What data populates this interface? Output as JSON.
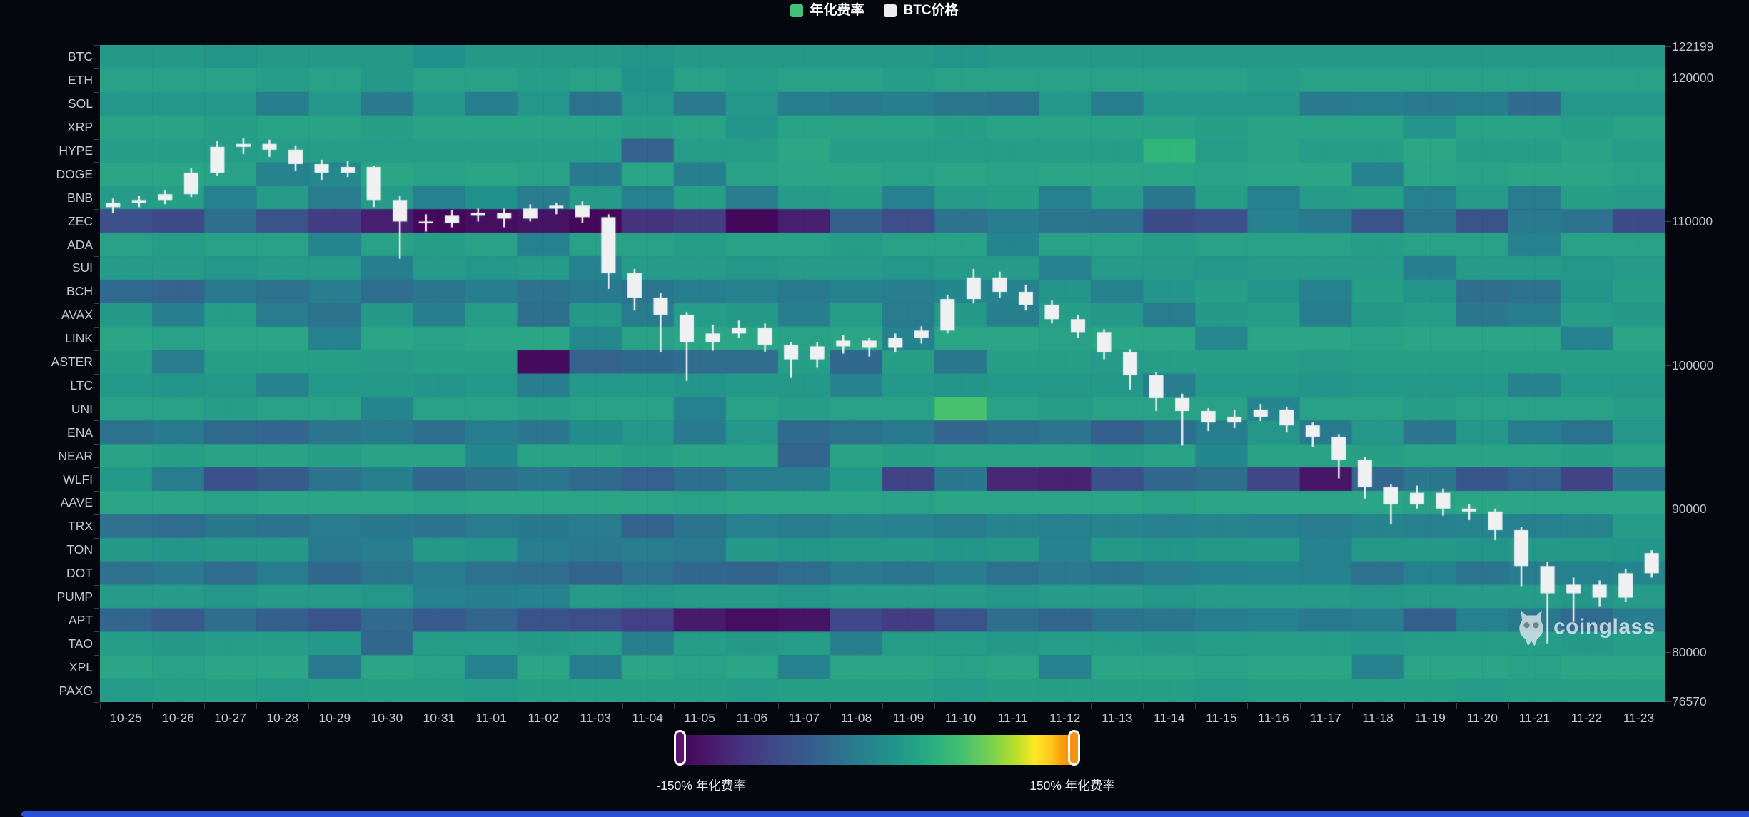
{
  "watermark": {
    "text": "coinglass"
  },
  "chart_data": {
    "type": "heatmap+candlestick",
    "title": "",
    "legend": [
      {
        "label": "年化费率",
        "color": "#41c27c"
      },
      {
        "label": "BTC价格",
        "color": "#ededef"
      }
    ],
    "colorbar": {
      "min": -150,
      "max": 150,
      "min_label": "-150% 年化费率",
      "max_label": "150% 年化费率",
      "min_handle_color": "#5c116b",
      "max_handle_color": "#f79216"
    },
    "x_dates": [
      "10-25",
      "10-26",
      "10-27",
      "10-28",
      "10-29",
      "10-30",
      "10-31",
      "11-01",
      "11-02",
      "11-03",
      "11-04",
      "11-05",
      "11-06",
      "11-07",
      "11-08",
      "11-09",
      "11-10",
      "11-11",
      "11-12",
      "11-13",
      "11-14",
      "11-15",
      "11-16",
      "11-17",
      "11-18",
      "11-19",
      "11-20",
      "11-21",
      "11-22",
      "11-23"
    ],
    "y_categories": [
      "BTC",
      "ETH",
      "SOL",
      "XRP",
      "HYPE",
      "DOGE",
      "BNB",
      "ZEC",
      "ADA",
      "SUI",
      "BCH",
      "AVAX",
      "LINK",
      "ASTER",
      "LTC",
      "UNI",
      "ENA",
      "NEAR",
      "WLFI",
      "AAVE",
      "TRX",
      "TON",
      "DOT",
      "PUMP",
      "APT",
      "TAO",
      "XPL",
      "PAXG"
    ],
    "heatmap_values_pct": [
      [
        12,
        12,
        10,
        12,
        12,
        12,
        8,
        12,
        12,
        12,
        10,
        12,
        12,
        12,
        12,
        12,
        10,
        12,
        12,
        12,
        12,
        12,
        12,
        12,
        12,
        12,
        12,
        12,
        12,
        12
      ],
      [
        12,
        12,
        12,
        10,
        12,
        8,
        12,
        12,
        10,
        12,
        5,
        12,
        10,
        12,
        12,
        10,
        12,
        12,
        12,
        12,
        12,
        12,
        10,
        12,
        12,
        12,
        12,
        12,
        12,
        12
      ],
      [
        10,
        10,
        10,
        -10,
        10,
        -15,
        10,
        -10,
        10,
        -25,
        10,
        -15,
        10,
        -10,
        -15,
        -10,
        -20,
        -25,
        10,
        -10,
        10,
        10,
        10,
        -15,
        -10,
        -15,
        -10,
        -35,
        10,
        10
      ],
      [
        12,
        12,
        10,
        12,
        12,
        10,
        12,
        12,
        12,
        12,
        10,
        12,
        5,
        12,
        12,
        12,
        10,
        12,
        12,
        12,
        12,
        10,
        12,
        12,
        12,
        5,
        12,
        12,
        10,
        12
      ],
      [
        12,
        12,
        12,
        12,
        12,
        12,
        12,
        12,
        12,
        12,
        -45,
        12,
        12,
        20,
        12,
        12,
        12,
        12,
        12,
        12,
        35,
        12,
        15,
        12,
        12,
        20,
        12,
        12,
        15,
        12
      ],
      [
        12,
        12,
        10,
        -10,
        -5,
        12,
        10,
        12,
        10,
        -20,
        12,
        -15,
        10,
        12,
        12,
        10,
        12,
        10,
        12,
        12,
        12,
        10,
        12,
        12,
        -10,
        12,
        10,
        12,
        12,
        10
      ],
      [
        10,
        12,
        -10,
        10,
        -15,
        10,
        -10,
        5,
        -15,
        10,
        -10,
        12,
        -15,
        10,
        12,
        -10,
        10,
        12,
        -10,
        10,
        -20,
        12,
        -10,
        10,
        12,
        -10,
        10,
        -15,
        12,
        10
      ],
      [
        -60,
        -70,
        -30,
        -55,
        -90,
        -120,
        -140,
        -135,
        -130,
        -140,
        -100,
        -90,
        -140,
        -120,
        -45,
        -65,
        -25,
        -10,
        -20,
        -25,
        -70,
        -60,
        -5,
        -15,
        -55,
        -20,
        -55,
        -15,
        -25,
        -70
      ],
      [
        12,
        10,
        12,
        12,
        -5,
        12,
        10,
        12,
        -10,
        12,
        12,
        10,
        12,
        12,
        10,
        12,
        12,
        -5,
        12,
        12,
        10,
        12,
        12,
        12,
        10,
        12,
        12,
        -10,
        12,
        12
      ],
      [
        12,
        12,
        10,
        12,
        12,
        -10,
        12,
        10,
        12,
        -5,
        12,
        12,
        10,
        12,
        12,
        10,
        12,
        12,
        -5,
        12,
        12,
        10,
        12,
        12,
        12,
        -10,
        12,
        12,
        10,
        12
      ],
      [
        -40,
        -45,
        -20,
        -30,
        -15,
        -35,
        -25,
        -15,
        -30,
        -20,
        -25,
        -15,
        -10,
        -20,
        -10,
        -15,
        -5,
        -10,
        5,
        -10,
        5,
        10,
        5,
        -10,
        10,
        5,
        -35,
        -30,
        5,
        10
      ],
      [
        10,
        -10,
        12,
        -15,
        -25,
        10,
        -10,
        12,
        -30,
        10,
        -15,
        12,
        10,
        -10,
        12,
        -15,
        10,
        -10,
        12,
        10,
        -15,
        10,
        12,
        -10,
        10,
        12,
        -20,
        -10,
        12,
        10
      ],
      [
        12,
        10,
        12,
        12,
        -10,
        12,
        10,
        12,
        12,
        -5,
        10,
        12,
        12,
        10,
        12,
        -10,
        12,
        12,
        10,
        12,
        12,
        -5,
        12,
        12,
        10,
        12,
        12,
        12,
        -10,
        12
      ],
      [
        12,
        -15,
        12,
        12,
        12,
        10,
        12,
        12,
        -140,
        -45,
        -40,
        -35,
        -35,
        12,
        -40,
        12,
        -20,
        12,
        12,
        10,
        12,
        12,
        12,
        10,
        12,
        12,
        12,
        12,
        12,
        12
      ],
      [
        12,
        10,
        12,
        -5,
        12,
        12,
        10,
        12,
        -10,
        12,
        12,
        10,
        12,
        12,
        -5,
        12,
        10,
        12,
        12,
        12,
        -10,
        12,
        12,
        10,
        12,
        12,
        12,
        -5,
        12,
        12
      ],
      [
        12,
        12,
        10,
        12,
        12,
        -5,
        12,
        12,
        10,
        12,
        12,
        -10,
        12,
        10,
        12,
        12,
        55,
        12,
        10,
        12,
        12,
        12,
        -5,
        12,
        12,
        10,
        12,
        12,
        12,
        10
      ],
      [
        -25,
        -15,
        -35,
        -40,
        -20,
        -15,
        -30,
        -10,
        -20,
        5,
        10,
        -15,
        10,
        -35,
        -25,
        -15,
        -40,
        -30,
        -20,
        -45,
        -30,
        -10,
        10,
        -15,
        10,
        -20,
        10,
        -10,
        -25,
        10
      ],
      [
        12,
        10,
        12,
        12,
        10,
        12,
        12,
        -5,
        12,
        12,
        10,
        12,
        12,
        -45,
        12,
        10,
        12,
        12,
        12,
        10,
        12,
        -5,
        12,
        12,
        10,
        12,
        12,
        12,
        10,
        12
      ],
      [
        10,
        -15,
        -60,
        -50,
        -25,
        -10,
        -40,
        -30,
        -20,
        -35,
        -45,
        -30,
        -15,
        -10,
        10,
        -85,
        -20,
        -115,
        -120,
        -60,
        -40,
        -30,
        -80,
        -130,
        -40,
        -20,
        -55,
        -45,
        -85,
        -20
      ],
      [
        12,
        12,
        10,
        12,
        12,
        12,
        10,
        12,
        12,
        12,
        12,
        10,
        12,
        12,
        12,
        10,
        12,
        12,
        12,
        12,
        10,
        12,
        12,
        12,
        12,
        10,
        12,
        12,
        12,
        12
      ],
      [
        -30,
        -35,
        -20,
        -25,
        -15,
        -20,
        -25,
        -15,
        -20,
        -15,
        -45,
        -25,
        -10,
        -15,
        -5,
        -10,
        -15,
        -5,
        -10,
        -5,
        -10,
        -5,
        -10,
        -15,
        -5,
        -10,
        -5,
        -10,
        -5,
        10
      ],
      [
        12,
        10,
        12,
        12,
        -15,
        -10,
        12,
        10,
        -10,
        -15,
        -10,
        -15,
        12,
        10,
        12,
        12,
        10,
        12,
        -5,
        12,
        10,
        12,
        12,
        -5,
        12,
        12,
        10,
        12,
        12,
        10
      ],
      [
        -30,
        -20,
        -35,
        -15,
        -40,
        -25,
        -15,
        -30,
        -35,
        -45,
        -30,
        -40,
        -45,
        -35,
        -20,
        -25,
        -15,
        -30,
        -20,
        -25,
        -15,
        -10,
        -5,
        -10,
        -30,
        -10,
        -25,
        -15,
        -10,
        -5
      ],
      [
        12,
        12,
        10,
        12,
        12,
        10,
        -5,
        -10,
        -5,
        12,
        10,
        12,
        12,
        10,
        12,
        12,
        12,
        10,
        12,
        12,
        10,
        12,
        12,
        12,
        10,
        12,
        12,
        12,
        10,
        12
      ],
      [
        -45,
        -55,
        -35,
        -50,
        -60,
        -40,
        -55,
        -45,
        -60,
        -70,
        -90,
        -130,
        -140,
        -135,
        -80,
        -95,
        -60,
        -35,
        -45,
        -30,
        -25,
        -15,
        -10,
        -20,
        -15,
        -50,
        -10,
        -20,
        -40,
        -15
      ],
      [
        12,
        10,
        12,
        12,
        10,
        -40,
        12,
        12,
        10,
        12,
        -10,
        12,
        10,
        12,
        -10,
        12,
        12,
        10,
        12,
        12,
        10,
        12,
        12,
        12,
        10,
        12,
        12,
        12,
        10,
        12
      ],
      [
        12,
        10,
        12,
        12,
        -20,
        12,
        10,
        -10,
        12,
        -15,
        12,
        10,
        12,
        -10,
        12,
        12,
        10,
        12,
        -10,
        12,
        12,
        10,
        12,
        12,
        -10,
        12,
        12,
        10,
        12,
        12
      ],
      [
        10,
        12,
        12,
        10,
        12,
        12,
        12,
        10,
        12,
        12,
        12,
        12,
        10,
        12,
        12,
        12,
        10,
        12,
        12,
        12,
        12,
        10,
        12,
        12,
        12,
        12,
        10,
        12,
        12,
        12
      ]
    ],
    "price_axis_ticks": [
      122199,
      120000,
      110000,
      100000,
      90000,
      80000,
      76570
    ],
    "price_axis_range": {
      "max": 122199,
      "min": 76570
    },
    "btc_candles_12h": [
      [
        111000,
        111600,
        110600,
        111300
      ],
      [
        111300,
        111800,
        111000,
        111500
      ],
      [
        111500,
        112200,
        111200,
        111900
      ],
      [
        111900,
        113700,
        111700,
        113400
      ],
      [
        113400,
        115600,
        113200,
        115200
      ],
      [
        115200,
        115800,
        114700,
        115400
      ],
      [
        115400,
        115700,
        114500,
        115000
      ],
      [
        115000,
        115300,
        113500,
        114000
      ],
      [
        114000,
        114300,
        112900,
        113400
      ],
      [
        113400,
        114200,
        113100,
        113800
      ],
      [
        113800,
        113900,
        111000,
        111500
      ],
      [
        111500,
        111800,
        107400,
        110000
      ],
      [
        110000,
        110500,
        109300,
        109900
      ],
      [
        109900,
        110800,
        109600,
        110400
      ],
      [
        110400,
        110900,
        110000,
        110600
      ],
      [
        110600,
        110900,
        109600,
        110200
      ],
      [
        110200,
        111200,
        110000,
        110900
      ],
      [
        110900,
        111300,
        110500,
        111100
      ],
      [
        111100,
        111400,
        109900,
        110300
      ],
      [
        110300,
        110500,
        105300,
        106400
      ],
      [
        106400,
        106700,
        103800,
        104700
      ],
      [
        104700,
        105000,
        100900,
        103500
      ],
      [
        103500,
        103700,
        98900,
        101600
      ],
      [
        101600,
        102800,
        101000,
        102200
      ],
      [
        102200,
        103100,
        101900,
        102600
      ],
      [
        102600,
        102900,
        100900,
        101400
      ],
      [
        101400,
        101600,
        99100,
        100400
      ],
      [
        100400,
        101600,
        99800,
        101300
      ],
      [
        101300,
        102100,
        100800,
        101700
      ],
      [
        101700,
        101900,
        100600,
        101200
      ],
      [
        101200,
        102200,
        100900,
        101900
      ],
      [
        101900,
        102700,
        101500,
        102400
      ],
      [
        102400,
        104900,
        102200,
        104600
      ],
      [
        104600,
        106700,
        104300,
        106100
      ],
      [
        106100,
        106500,
        104700,
        105100
      ],
      [
        105100,
        105600,
        103800,
        104200
      ],
      [
        104200,
        104500,
        102900,
        103200
      ],
      [
        103200,
        103500,
        101900,
        102300
      ],
      [
        102300,
        102500,
        100400,
        100900
      ],
      [
        100900,
        101100,
        98300,
        99300
      ],
      [
        99300,
        99500,
        96800,
        97700
      ],
      [
        97700,
        98000,
        94400,
        96800
      ],
      [
        96800,
        97000,
        95400,
        96000
      ],
      [
        96000,
        96900,
        95600,
        96400
      ],
      [
        96400,
        97300,
        96100,
        96900
      ],
      [
        96900,
        97100,
        95300,
        95800
      ],
      [
        95800,
        96000,
        94300,
        95000
      ],
      [
        95000,
        95200,
        92100,
        93400
      ],
      [
        93400,
        93600,
        90700,
        91500
      ],
      [
        91500,
        91700,
        88900,
        90300
      ],
      [
        90300,
        91600,
        90000,
        91100
      ],
      [
        91100,
        91400,
        89500,
        90000
      ],
      [
        90000,
        90300,
        89200,
        89800
      ],
      [
        89800,
        90000,
        87800,
        88500
      ],
      [
        88500,
        88700,
        84600,
        86000
      ],
      [
        86000,
        86300,
        80600,
        84100
      ],
      [
        84100,
        85200,
        82100,
        84700
      ],
      [
        84700,
        85000,
        83200,
        83800
      ],
      [
        83800,
        85800,
        83500,
        85500
      ],
      [
        85500,
        87100,
        85200,
        86900
      ]
    ]
  }
}
